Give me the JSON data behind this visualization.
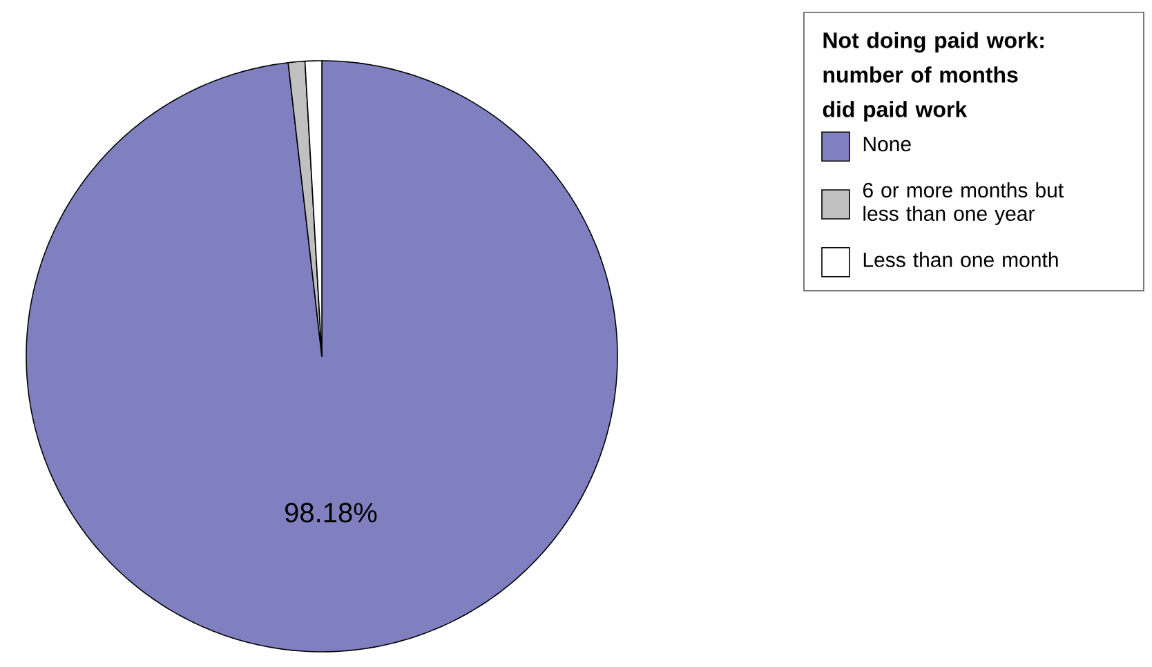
{
  "chart_data": {
    "type": "pie",
    "legend_title": "Not doing paid work: number of months did paid work",
    "categories": [
      "None",
      "6 or more months but less than one year",
      "Less than one month"
    ],
    "values": [
      98.18,
      0.91,
      0.91
    ],
    "colors": [
      "#8080c0",
      "#c0c0c0",
      "#ffffff"
    ],
    "value_labels": [
      "98.18%",
      null,
      null
    ],
    "legend": "top right"
  }
}
